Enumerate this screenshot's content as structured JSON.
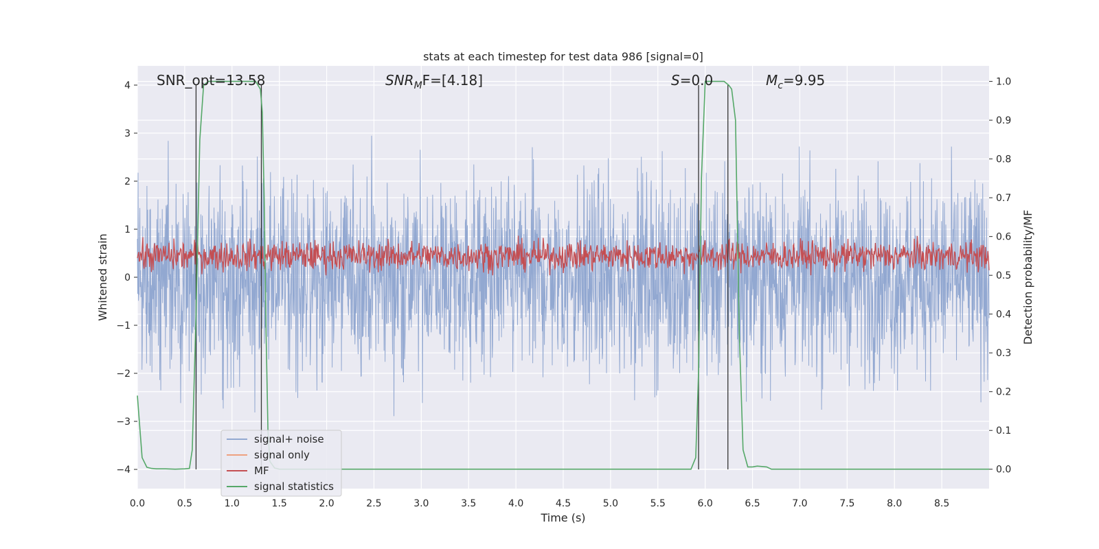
{
  "chart_data": {
    "type": "line",
    "title": "stats at each timestep for test data 986 [signal=0]",
    "xlabel": "Time (s)",
    "ylabel_left": "Whitened strain",
    "ylabel_right": "Detection probability/MF",
    "xlim": [
      0.0,
      9.0
    ],
    "ylim_left": [
      -4.4,
      4.4
    ],
    "ylim_right": [
      -0.05,
      1.04
    ],
    "x_ticks": [
      0.0,
      0.5,
      1.0,
      1.5,
      2.0,
      2.5,
      3.0,
      3.5,
      4.0,
      4.5,
      5.0,
      5.5,
      6.0,
      6.5,
      7.0,
      7.5,
      8.0,
      8.5
    ],
    "x_tick_labels": [
      "0.0",
      "0.5",
      "1.0",
      "1.5",
      "2.0",
      "2.5",
      "3.0",
      "3.5",
      "4.0",
      "4.5",
      "5.0",
      "5.5",
      "6.0",
      "6.5",
      "7.0",
      "7.5",
      "8.0",
      "8.5"
    ],
    "y_left_ticks": [
      -4,
      -3,
      -2,
      -1,
      0,
      1,
      2,
      3,
      4
    ],
    "y_left_tick_labels": [
      "−4",
      "−3",
      "−2",
      "−1",
      "0",
      "1",
      "2",
      "3",
      "4"
    ],
    "y_right_ticks": [
      0.0,
      0.1,
      0.2,
      0.3,
      0.4,
      0.5,
      0.6,
      0.7,
      0.8,
      0.9,
      1.0
    ],
    "y_right_tick_labels": [
      "0.0",
      "0.1",
      "0.2",
      "0.3",
      "0.4",
      "0.5",
      "0.6",
      "0.7",
      "0.8",
      "0.9",
      "1.0"
    ],
    "grid": true,
    "legend_position": "bottom-left",
    "annotations": {
      "snr_opt": "SNR_opt=13.58",
      "snr_mf_sym": "SNR",
      "snr_mf_sub": "M",
      "snr_mf_val": "F=[4.18]",
      "s_sym": "S",
      "s_val": "=0.0",
      "mc_sym": "M",
      "mc_sub": "c",
      "mc_val": "=9.95"
    },
    "series": [
      {
        "name": "signal+ noise",
        "color": "#92a8d1",
        "axis": "left",
        "description": "whitened strain noise, amplitude roughly within ±4"
      },
      {
        "name": "signal only",
        "color": "#eea17f",
        "axis": "left",
        "description": "not visible (signal=0)"
      },
      {
        "name": "MF",
        "color": "#c44e52",
        "axis": "right",
        "description": "matched filter output fluctuating around 0.5-0.6"
      },
      {
        "name": "signal statistics",
        "color": "#55a868",
        "axis": "right",
        "x": [
          0.0,
          0.05,
          0.1,
          0.15,
          0.2,
          0.3,
          0.4,
          0.5,
          0.55,
          0.58,
          0.62,
          0.66,
          0.7,
          0.75,
          0.8,
          1.0,
          1.2,
          1.25,
          1.3,
          1.32,
          1.34,
          1.36,
          1.38,
          1.4,
          1.45,
          1.5,
          2.0,
          3.0,
          4.0,
          5.0,
          5.5,
          5.85,
          5.9,
          5.93,
          5.96,
          6.0,
          6.05,
          6.15,
          6.2,
          6.25,
          6.28,
          6.32,
          6.36,
          6.4,
          6.45,
          6.5,
          6.55,
          6.6,
          6.65,
          6.7,
          7.0,
          8.0,
          9.0
        ],
        "values": [
          0.19,
          0.03,
          0.005,
          0.002,
          0.001,
          0.001,
          0.0,
          0.001,
          0.002,
          0.05,
          0.4,
          0.85,
          0.99,
          1.0,
          1.0,
          1.0,
          1.0,
          1.0,
          0.98,
          0.92,
          0.7,
          0.35,
          0.1,
          0.02,
          0.003,
          0.0,
          0.0,
          0.0,
          0.0,
          0.0,
          0.0,
          0.0,
          0.03,
          0.25,
          0.75,
          1.0,
          1.0,
          1.0,
          1.0,
          0.99,
          0.98,
          0.9,
          0.35,
          0.05,
          0.006,
          0.006,
          0.008,
          0.007,
          0.006,
          0.0,
          0.0,
          0.0,
          0.0
        ]
      }
    ],
    "marker_lines": {
      "x": [
        0.62,
        1.31,
        5.93,
        6.24
      ],
      "y_range": [
        -4.0,
        4.0
      ],
      "color": "#333333"
    }
  }
}
